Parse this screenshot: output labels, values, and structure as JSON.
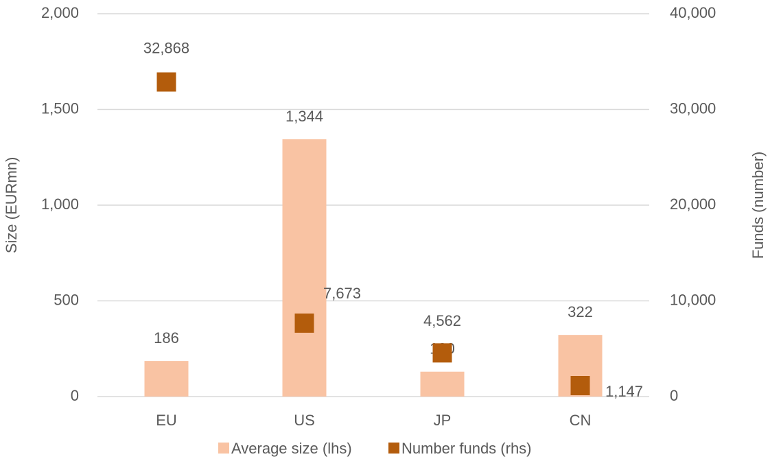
{
  "chart_data": {
    "type": "bar_scatter",
    "categories": [
      "EU",
      "US",
      "JP",
      "CN"
    ],
    "series": [
      {
        "name": "Average size (lhs)",
        "color": "#f9c3a3",
        "type": "bar",
        "axis": "y",
        "values": [
          186,
          1344,
          130,
          322
        ],
        "value_labels": [
          "186",
          "1,344",
          "130",
          "322"
        ]
      },
      {
        "name": "Number funds (rhs)",
        "color": "#b35c0c",
        "type": "square",
        "axis": "y2",
        "values": [
          32868,
          7673,
          4562,
          1147
        ],
        "value_labels": [
          "32,868",
          "7,673",
          "4,562",
          "1,147"
        ]
      }
    ],
    "ylabel": "Size (EURmn)",
    "y2label": "Funds (number)",
    "ylim": [
      0,
      2000
    ],
    "yticks": [
      0,
      500,
      {
        "value": 1000,
        "label": "1,000"
      },
      {
        "value": 1500,
        "label": "1,500"
      },
      {
        "value": 2000,
        "label": "2,000"
      }
    ],
    "y2lim": [
      0,
      40000
    ],
    "y2ticks": [
      0,
      {
        "value": 10000,
        "label": "10,000"
      },
      {
        "value": 20000,
        "label": "20,000"
      },
      {
        "value": 30000,
        "label": "30,000"
      },
      {
        "value": 40000,
        "label": "40,000"
      }
    ],
    "grid": true,
    "legend": "bottom"
  }
}
